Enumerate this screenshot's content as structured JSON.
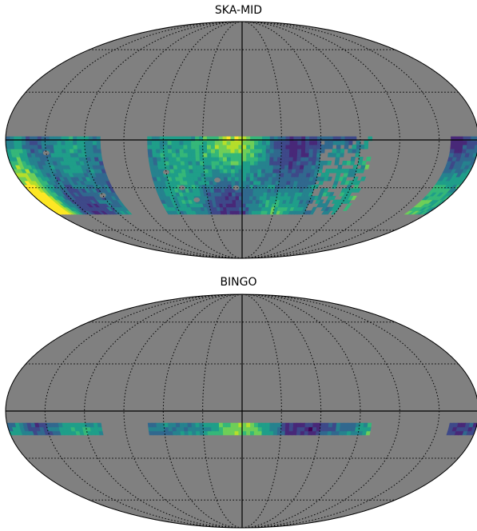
{
  "panels": [
    {
      "title": "SKA-MID",
      "projection": "mollweide",
      "colormap": "viridis",
      "background_color": "#808080",
      "graticule": "dotted",
      "coverage_dec_range": [
        -48,
        2
      ]
    },
    {
      "title": "BINGO",
      "projection": "mollweide",
      "colormap": "viridis",
      "background_color": "#808080",
      "graticule": "dotted",
      "coverage_dec_range": [
        -15,
        -8
      ]
    }
  ],
  "colors": {
    "masked": "#808080",
    "graticule": "#000000",
    "viridis": [
      "#440154",
      "#482878",
      "#3e4989",
      "#31688e",
      "#26828e",
      "#1f9e89",
      "#35b779",
      "#6ece58",
      "#b5de2b",
      "#fde725"
    ]
  }
}
